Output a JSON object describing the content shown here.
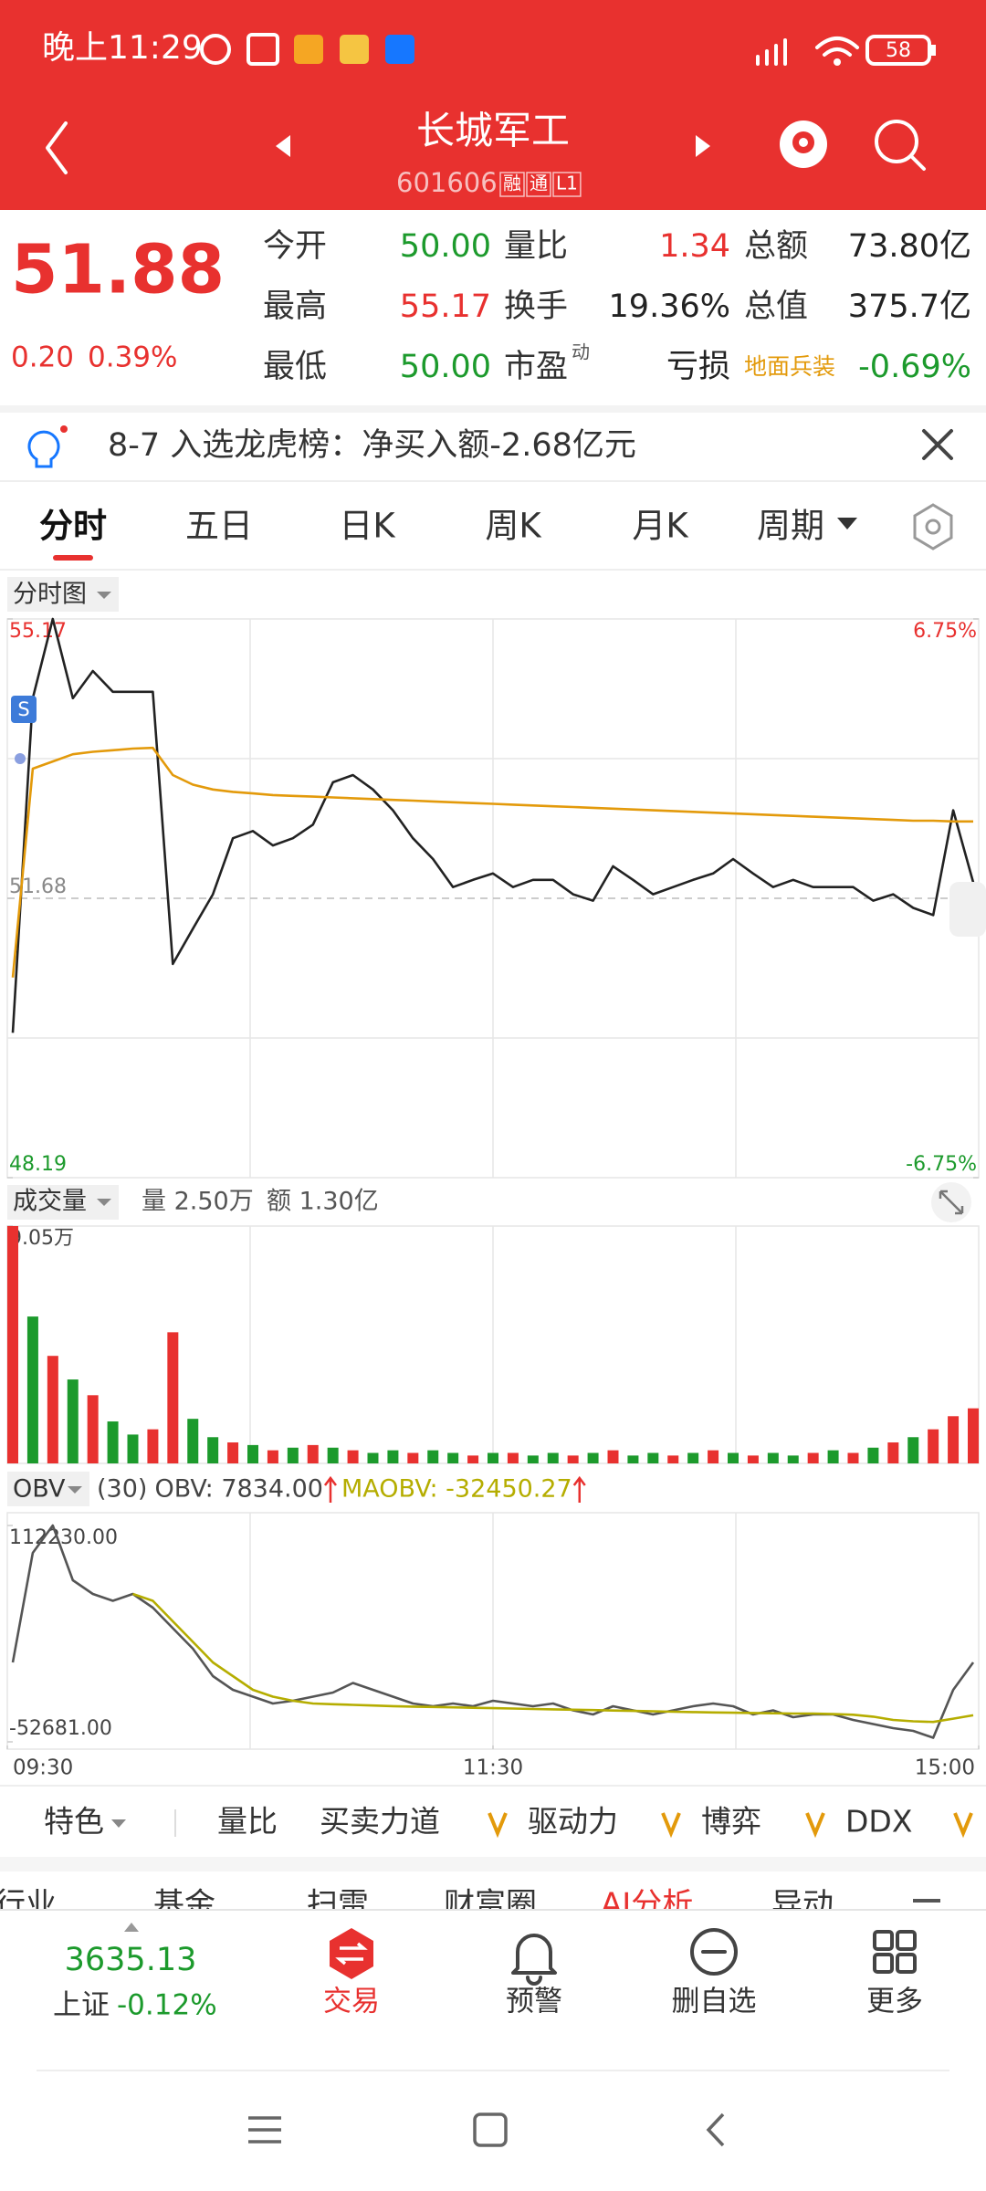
{
  "status_bar": {
    "time": "晚上11:29",
    "battery": "58"
  },
  "header": {
    "title": "长城军工",
    "code": "601606",
    "badges": [
      "融",
      "通",
      "L1"
    ]
  },
  "quote": {
    "price": "51.88",
    "change": "0.20",
    "change_pct": "0.39%",
    "rows": [
      [
        {
          "label": "今开",
          "value": "50.00"
        },
        {
          "label": "量比",
          "value": "1.34"
        },
        {
          "label": "总额",
          "value": "73.80亿"
        }
      ],
      [
        {
          "label": "最高",
          "value": "55.17"
        },
        {
          "label": "换手",
          "value": "19.36%"
        },
        {
          "label": "总值",
          "value": "375.7亿"
        }
      ],
      [
        {
          "label": "最低",
          "value": "50.00"
        },
        {
          "label": "市盈",
          "label_sup": "动",
          "value": "亏损"
        },
        {
          "label": "地面兵装",
          "value": "-0.69%"
        }
      ]
    ]
  },
  "notice": "8-7 入选龙虎榜：净买入额-2.68亿元",
  "tabs": [
    "分时",
    "五日",
    "日K",
    "周K",
    "月K",
    "周期"
  ],
  "price_chart": {
    "type": "line",
    "label": "分时图",
    "marker": "S",
    "ylim": [
      48.19,
      55.17
    ],
    "yticks": [
      48.19,
      51.68,
      55.17
    ],
    "y2lim": [
      -6.75,
      6.75
    ],
    "y2ticks": [
      {
        "value": -6.75,
        "label": "-6.75%"
      },
      {
        "value": 6.75,
        "label": "6.75%"
      }
    ],
    "series": [
      {
        "color": "#222222",
        "values": [
          50.0,
          54.18,
          55.17,
          54.18,
          54.52,
          54.26,
          54.26,
          54.26,
          50.86,
          51.3,
          51.73,
          52.43,
          52.52,
          52.34,
          52.43,
          52.6,
          53.13,
          53.22,
          53.04,
          52.78,
          52.43,
          52.17,
          51.82,
          51.91,
          51.99,
          51.82,
          51.91,
          51.91,
          51.73,
          51.65,
          52.08,
          51.91,
          51.73,
          51.82,
          51.91,
          51.99,
          52.17,
          51.99,
          51.82,
          51.91,
          51.82,
          51.82,
          51.82,
          51.65,
          51.73,
          51.56,
          51.47,
          52.78,
          51.88
        ]
      },
      {
        "color": "#e39a0b",
        "values": [
          50.69,
          53.3,
          53.39,
          53.48,
          53.51,
          53.53,
          53.55,
          53.56,
          53.22,
          53.1,
          53.04,
          53.01,
          52.99,
          52.97,
          52.96,
          52.95,
          52.94,
          52.93,
          52.92,
          52.91,
          52.9,
          52.89,
          52.88,
          52.87,
          52.86,
          52.85,
          52.84,
          52.83,
          52.82,
          52.81,
          52.8,
          52.79,
          52.78,
          52.77,
          52.76,
          52.75,
          52.74,
          52.73,
          52.72,
          52.71,
          52.7,
          52.69,
          52.68,
          52.67,
          52.66,
          52.65,
          52.65,
          52.64,
          52.64
        ]
      }
    ]
  },
  "volume_chart": {
    "type": "bar",
    "label": "成交量",
    "volume": "量 2.50万",
    "amount": "额 1.30亿",
    "ylim": [
      0,
      9.05
    ],
    "yticks": [
      {
        "value": 9.05,
        "label": "9.05万"
      }
    ],
    "series": [
      {
        "color": "#e8312f",
        "values": [
          9.05,
          null,
          4.1,
          null,
          2.6,
          null,
          null,
          1.3,
          5.0,
          null,
          null,
          0.8,
          null,
          0.5,
          null,
          0.7,
          null,
          0.5,
          null,
          null,
          0.4,
          null,
          null,
          0.3,
          null,
          0.4,
          null,
          null,
          0.3,
          null,
          0.5,
          null,
          null,
          0.3,
          null,
          0.5,
          null,
          0.3,
          null,
          null,
          0.4,
          null,
          0.4,
          null,
          0.8,
          null,
          1.3,
          1.8,
          2.1
        ]
      },
      {
        "color": "#1c9a2c",
        "values": [
          null,
          5.6,
          null,
          3.2,
          null,
          1.6,
          1.1,
          null,
          null,
          1.7,
          1.0,
          null,
          0.7,
          null,
          0.6,
          null,
          0.6,
          null,
          0.4,
          0.5,
          null,
          0.5,
          0.4,
          null,
          0.4,
          null,
          0.3,
          0.4,
          null,
          0.4,
          null,
          0.3,
          0.4,
          null,
          0.4,
          null,
          0.4,
          null,
          0.4,
          0.3,
          null,
          0.5,
          null,
          0.6,
          null,
          1.0,
          null,
          null,
          null
        ]
      }
    ]
  },
  "obv_chart": {
    "type": "line",
    "label": "OBV",
    "period": "(30)",
    "obv": "OBV: 7834.00",
    "maobv": "MAOBV: -32450.27",
    "ylim": [
      -52681,
      112230
    ],
    "yticks": [
      {
        "value": -52681,
        "label": "-52681.00"
      },
      {
        "value": 112230,
        "label": "112230.00"
      }
    ],
    "xlim": [
      0,
      48
    ],
    "xticks": [
      {
        "value": 0,
        "label": "09:30"
      },
      {
        "value": 24,
        "label": "11:30"
      },
      {
        "value": 48,
        "label": "15:00"
      }
    ],
    "series": [
      {
        "color": "#555555",
        "values": [
          7860,
          91356,
          112230,
          70482,
          60045,
          54827,
          60045,
          49608,
          33952,
          18297,
          -2577,
          -13014,
          -18233,
          -23451,
          -21364,
          -18233,
          -15101,
          -7795,
          -13014,
          -18233,
          -23451,
          -25538,
          -23451,
          -25538,
          -21364,
          -23451,
          -25538,
          -23451,
          -28670,
          -31801,
          -25538,
          -28670,
          -31801,
          -28670,
          -25538,
          -23451,
          -25538,
          -31801,
          -28670,
          -33888,
          -31801,
          -31801,
          -35975,
          -39107,
          -42238,
          -44325,
          -49544,
          -13014,
          7834
        ]
      },
      {
        "color": "#b5ad00",
        "values": [
          null,
          null,
          null,
          null,
          null,
          null,
          60045,
          54827,
          39171,
          23516,
          7860,
          -2577,
          -13014,
          -18233,
          -21364,
          -23451,
          -24000,
          -24500,
          -25000,
          -25500,
          -25800,
          -26100,
          -26400,
          -26700,
          -27000,
          -27300,
          -27600,
          -27900,
          -28200,
          -28500,
          -28800,
          -29100,
          -29400,
          -29700,
          -30000,
          -30300,
          -30500,
          -30700,
          -30900,
          -31100,
          -31100,
          -31500,
          -32000,
          -33500,
          -36000,
          -37000,
          -37500,
          -35000,
          -32450.27
        ]
      }
    ]
  },
  "indicator_tabs": [
    "特色",
    "量比",
    "买卖力道",
    "驱动力",
    "博弈",
    "DDX"
  ],
  "sub_tabs": [
    "行业",
    "基金",
    "扫雷",
    "财富圈",
    "AI分析",
    "异动"
  ],
  "bottom_nav": {
    "index_value": "3635.13",
    "index_name": "上证",
    "index_change": "-0.12%",
    "items": [
      "交易",
      "预警",
      "删自选",
      "更多"
    ]
  }
}
